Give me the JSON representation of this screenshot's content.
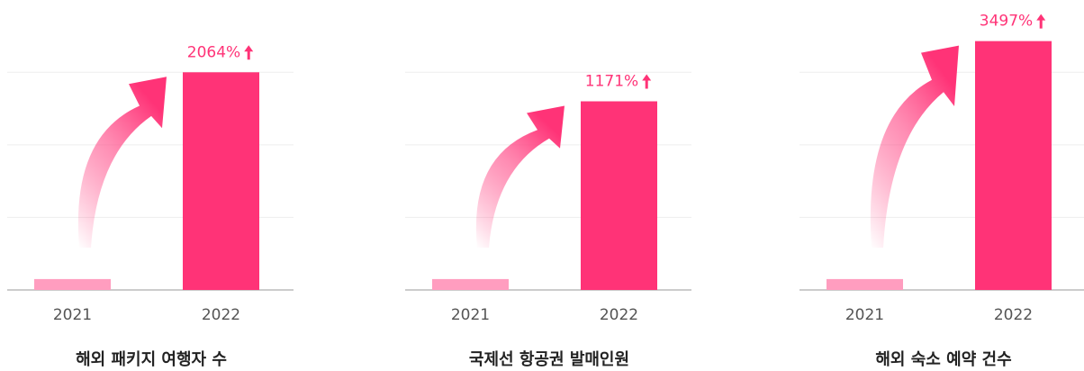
{
  "chart_data": [
    {
      "type": "bar",
      "title": "해외 패키지 여행자 수",
      "categories": [
        "2021",
        "2022"
      ],
      "values": [
        0.15,
        3.0
      ],
      "colors": [
        "#ff9dbf",
        "#ff3377"
      ],
      "annotation": "2064%",
      "ylim": [
        0,
        3.5
      ],
      "yticks": [
        0,
        1,
        2,
        3
      ],
      "grid": true
    },
    {
      "type": "bar",
      "title": "국제선 항공권 발매인원",
      "categories": [
        "2021",
        "2022"
      ],
      "values": [
        0.15,
        2.6
      ],
      "colors": [
        "#ff9dbf",
        "#ff3377"
      ],
      "annotation": "1171%",
      "ylim": [
        0,
        3.5
      ],
      "yticks": [
        0,
        1,
        2,
        3
      ],
      "grid": true
    },
    {
      "type": "bar",
      "title": "해외 숙소 예약 건수",
      "categories": [
        "2021",
        "2022"
      ],
      "values": [
        0.15,
        3.43
      ],
      "colors": [
        "#ff9dbf",
        "#ff3377"
      ],
      "annotation": "3497%",
      "ylim": [
        0,
        3.5
      ],
      "yticks": [
        0,
        1,
        2,
        3
      ],
      "grid": true
    }
  ]
}
